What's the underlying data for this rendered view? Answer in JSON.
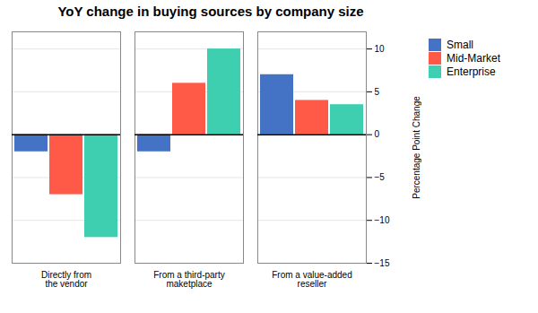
{
  "chart_data": {
    "type": "bar",
    "title": "YoY change in buying sources by company size",
    "categories": [
      "Directly from\nthe vendor",
      "From a third-party\nmaketplace",
      "From a value-added\nreseller"
    ],
    "series": [
      {
        "name": "Small",
        "color": "#4472C4",
        "values": [
          -2,
          -2,
          7
        ]
      },
      {
        "name": "Mid-Market",
        "color": "#FF5A47",
        "values": [
          -7,
          6,
          4
        ]
      },
      {
        "name": "Enterprise",
        "color": "#3DCFB0",
        "values": [
          -12,
          10,
          3.5
        ]
      }
    ],
    "ylabel": "Percentage Point Change",
    "ylim": [
      -15,
      12
    ],
    "yticks": [
      -15,
      -10,
      -5,
      0,
      5,
      10
    ],
    "grid": true,
    "legend": "right"
  }
}
